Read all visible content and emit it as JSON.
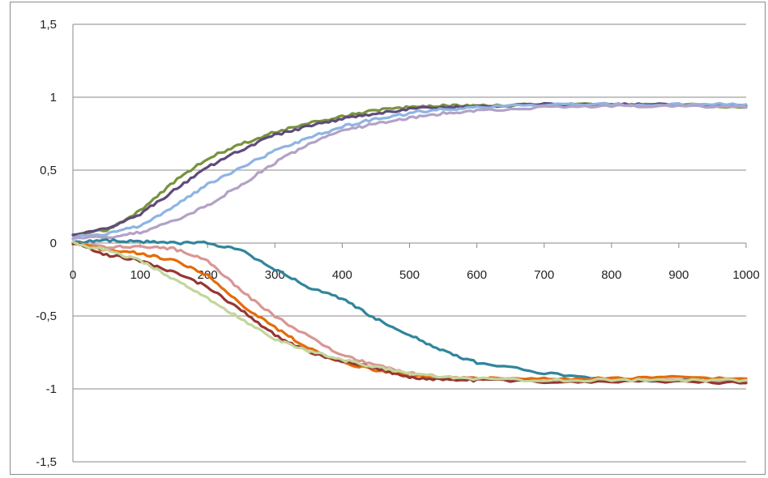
{
  "chart_data": {
    "type": "line",
    "xlim": [
      0,
      1000
    ],
    "ylim": [
      -1.5,
      1.5
    ],
    "x_ticks": [
      "0",
      "100",
      "200",
      "300",
      "400",
      "500",
      "600",
      "700",
      "800",
      "900",
      "1000"
    ],
    "y_ticks": [
      "1,5",
      "1",
      "0,5",
      "0",
      "-0,5",
      "-1",
      "-1,5"
    ],
    "y_tick_values": [
      1.5,
      1,
      0.5,
      0,
      -0.5,
      -1,
      -1.5
    ],
    "x_tick_values": [
      0,
      100,
      200,
      300,
      400,
      500,
      600,
      700,
      800,
      900,
      1000
    ],
    "grid": "horizontal",
    "legend": "none",
    "series": [
      {
        "color": "#77933c",
        "x": [
          0,
          50,
          100,
          150,
          200,
          250,
          300,
          350,
          400,
          450,
          500,
          550,
          600,
          700,
          800,
          900,
          1000
        ],
        "y": [
          0.05,
          0.09,
          0.22,
          0.42,
          0.58,
          0.68,
          0.76,
          0.82,
          0.87,
          0.91,
          0.93,
          0.94,
          0.94,
          0.95,
          0.95,
          0.95,
          0.93
        ]
      },
      {
        "color": "#604a7b",
        "x": [
          0,
          50,
          100,
          150,
          200,
          250,
          300,
          350,
          400,
          450,
          500,
          550,
          600,
          700,
          800,
          900,
          1000
        ],
        "y": [
          0.05,
          0.1,
          0.2,
          0.36,
          0.52,
          0.64,
          0.74,
          0.8,
          0.85,
          0.89,
          0.92,
          0.93,
          0.94,
          0.95,
          0.95,
          0.95,
          0.94
        ]
      },
      {
        "color": "#8eb4e3",
        "x": [
          0,
          50,
          100,
          150,
          200,
          250,
          300,
          350,
          400,
          450,
          500,
          550,
          600,
          700,
          800,
          900,
          1000
        ],
        "y": [
          0.04,
          0.06,
          0.12,
          0.25,
          0.4,
          0.52,
          0.63,
          0.72,
          0.8,
          0.85,
          0.89,
          0.92,
          0.93,
          0.95,
          0.95,
          0.95,
          0.95
        ]
      },
      {
        "color": "#b3a2c7",
        "x": [
          0,
          50,
          100,
          150,
          200,
          250,
          300,
          350,
          400,
          450,
          500,
          550,
          600,
          700,
          800,
          900,
          1000
        ],
        "y": [
          0.03,
          0.04,
          0.07,
          0.15,
          0.26,
          0.4,
          0.55,
          0.68,
          0.77,
          0.82,
          0.86,
          0.89,
          0.91,
          0.93,
          0.94,
          0.94,
          0.93
        ]
      },
      {
        "color": "#31859c",
        "x": [
          0,
          50,
          100,
          150,
          200,
          250,
          300,
          350,
          400,
          450,
          500,
          550,
          600,
          700,
          800,
          900,
          1000
        ],
        "y": [
          0.0,
          0.02,
          0.01,
          0.0,
          0.0,
          -0.05,
          -0.18,
          -0.3,
          -0.38,
          -0.52,
          -0.63,
          -0.74,
          -0.82,
          -0.89,
          -0.94,
          -0.94,
          -0.94
        ]
      },
      {
        "color": "#d99694",
        "x": [
          0,
          50,
          100,
          150,
          200,
          250,
          300,
          350,
          400,
          450,
          500,
          550,
          600,
          700,
          800,
          900,
          1000
        ],
        "y": [
          0.0,
          -0.03,
          -0.02,
          -0.04,
          -0.12,
          -0.33,
          -0.5,
          -0.64,
          -0.77,
          -0.84,
          -0.89,
          -0.92,
          -0.93,
          -0.94,
          -0.94,
          -0.94,
          -0.95
        ]
      },
      {
        "color": "#e36c09",
        "x": [
          0,
          50,
          100,
          150,
          200,
          250,
          300,
          350,
          400,
          450,
          500,
          550,
          600,
          700,
          800,
          900,
          1000
        ],
        "y": [
          0.0,
          -0.05,
          -0.07,
          -0.12,
          -0.22,
          -0.42,
          -0.58,
          -0.72,
          -0.82,
          -0.87,
          -0.91,
          -0.92,
          -0.93,
          -0.93,
          -0.93,
          -0.92,
          -0.93
        ]
      },
      {
        "color": "#953735",
        "x": [
          0,
          50,
          100,
          150,
          200,
          250,
          300,
          350,
          400,
          450,
          500,
          550,
          600,
          700,
          800,
          900,
          1000
        ],
        "y": [
          0.0,
          -0.08,
          -0.12,
          -0.2,
          -0.3,
          -0.46,
          -0.63,
          -0.75,
          -0.81,
          -0.86,
          -0.92,
          -0.94,
          -0.94,
          -0.95,
          -0.95,
          -0.95,
          -0.96
        ]
      },
      {
        "color": "#c3d69b",
        "x": [
          0,
          50,
          100,
          150,
          200,
          250,
          300,
          350,
          400,
          450,
          500,
          550,
          600,
          700,
          800,
          900,
          1000
        ],
        "y": [
          0.0,
          -0.05,
          -0.12,
          -0.25,
          -0.38,
          -0.52,
          -0.66,
          -0.74,
          -0.8,
          -0.85,
          -0.89,
          -0.92,
          -0.93,
          -0.94,
          -0.94,
          -0.94,
          -0.94
        ]
      }
    ]
  }
}
